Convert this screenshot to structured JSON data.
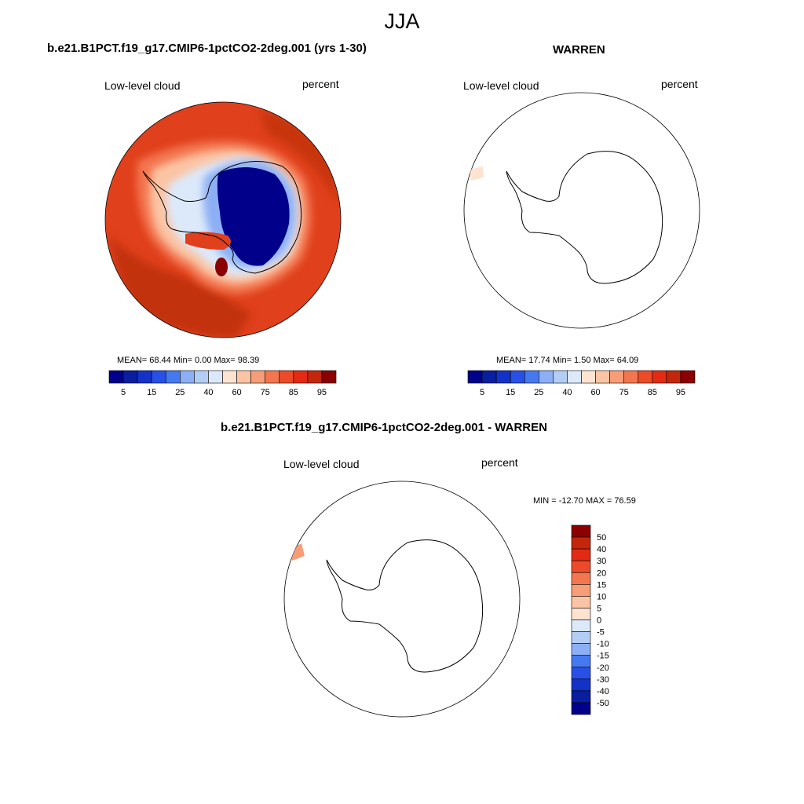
{
  "main_title": "JJA",
  "colors": {
    "levels": [
      "#00008b",
      "#0a1ea0",
      "#1432c8",
      "#2850e6",
      "#4678f0",
      "#8caff5",
      "#b4cdf5",
      "#dce9fa",
      "#fde3d0",
      "#fbc4a4",
      "#f79d77",
      "#f3764f",
      "#ec4a28",
      "#e22b12",
      "#c4260c",
      "#8b0000"
    ],
    "ocean": "#e0401c",
    "ocean_dark": "#c2300e",
    "ice_core": "#00008b"
  },
  "panels": {
    "model": {
      "title": "b.e21.B1PCT.f19_g17.CMIP6-1pctCO2-2deg.001 (yrs 1-30)",
      "field": "Low-level cloud",
      "units": "percent",
      "stats": "MEAN=  68.44  Min=   0.00  Max=  98.39"
    },
    "obs": {
      "title": "WARREN",
      "field": "Low-level cloud",
      "units": "percent",
      "stats": "MEAN=  17.74  Min=   1.50  Max=  64.09"
    },
    "diff": {
      "title": "b.e21.B1PCT.f19_g17.CMIP6-1pctCO2-2deg.001 - WARREN",
      "field": "Low-level cloud",
      "units": "percent",
      "stats": "MIN = -12.70 MAX =  76.59"
    }
  },
  "chart_data": [
    {
      "type": "heatmap",
      "title": "b.e21.B1PCT.f19_g17.CMIP6-1pctCO2-2deg.001 (yrs 1-30)",
      "variable": "Low-level cloud",
      "units": "percent",
      "projection": "south-polar-stereographic",
      "mean": 68.44,
      "min": 0.0,
      "max": 98.39,
      "colorbar_ticks": [
        "5",
        "15",
        "25",
        "40",
        "60",
        "75",
        "85",
        "95"
      ],
      "colorbar_orientation": "horizontal"
    },
    {
      "type": "heatmap",
      "title": "WARREN",
      "variable": "Low-level cloud",
      "units": "percent",
      "projection": "south-polar-stereographic",
      "mean": 17.74,
      "min": 1.5,
      "max": 64.09,
      "colorbar_ticks": [
        "5",
        "15",
        "25",
        "40",
        "60",
        "75",
        "85",
        "95"
      ],
      "colorbar_orientation": "horizontal"
    },
    {
      "type": "heatmap",
      "title": "b.e21.B1PCT.f19_g17.CMIP6-1pctCO2-2deg.001 - WARREN",
      "variable": "Low-level cloud",
      "units": "percent",
      "projection": "south-polar-stereographic",
      "min": -12.7,
      "max": 76.59,
      "colorbar_ticks": [
        "50",
        "40",
        "30",
        "20",
        "15",
        "10",
        "5",
        "0",
        "-5",
        "-10",
        "-15",
        "-20",
        "-30",
        "-40",
        "-50"
      ],
      "colorbar_orientation": "vertical"
    }
  ]
}
